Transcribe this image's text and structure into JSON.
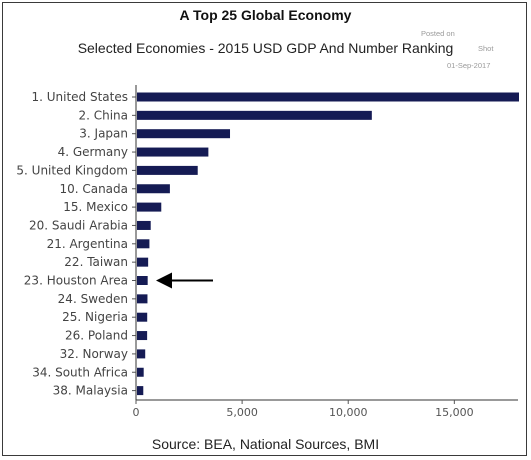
{
  "chart_data": {
    "type": "bar",
    "orientation": "horizontal",
    "title": "A Top 25 Global Economy",
    "subtitle": "Selected Economies - 2015 USD GDP And Number Ranking",
    "source": "Source: BEA, National Sources, BMI",
    "categories": [
      "1. United States",
      "2. China",
      "3. Japan",
      "4. Germany",
      "5. United Kingdom",
      "10. Canada",
      "15. Mexico",
      "20. Saudi Arabia",
      "21. Argentina",
      "22. Taiwan",
      "23. Houston Area",
      "24. Sweden",
      "25. Nigeria",
      "26. Poland",
      "32. Norway",
      "34. South Africa",
      "38. Malaysia"
    ],
    "values": [
      18037,
      11065,
      4383,
      3363,
      2861,
      1550,
      1144,
      646,
      585,
      525,
      503,
      493,
      481,
      477,
      387,
      315,
      296
    ],
    "xlim": [
      0,
      18000
    ],
    "xticks": [
      0,
      5000,
      10000,
      15000
    ],
    "xtick_labels": [
      "0",
      "5,000",
      "10,000",
      "15,000"
    ],
    "bar_color": "#151b54",
    "grid": false,
    "highlight_category": "23. Houston Area",
    "annotation": "arrow pointing to 23. Houston Area"
  },
  "watermark": {
    "line1": "Posted on",
    "line2": "Shot",
    "line3": "01-Sep-2017"
  }
}
